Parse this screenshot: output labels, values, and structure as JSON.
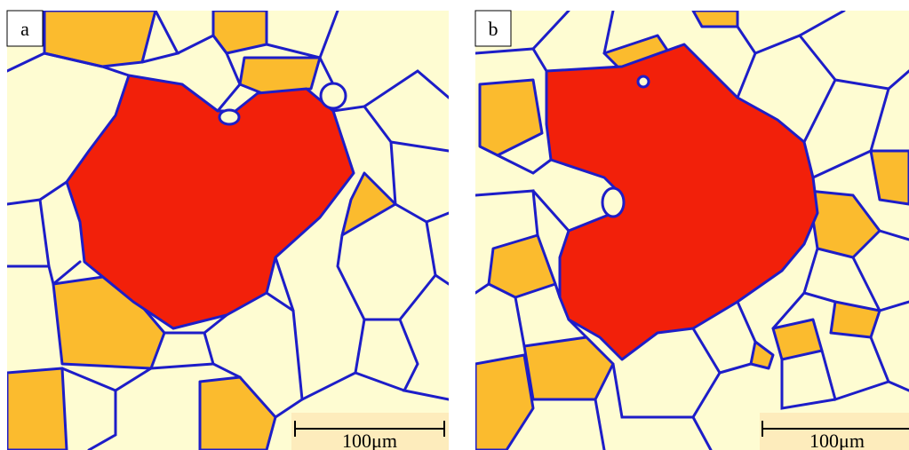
{
  "panels": [
    {
      "label": "a",
      "scale_bar": "100μm"
    },
    {
      "label": "b",
      "scale_bar": "100μm"
    }
  ]
}
